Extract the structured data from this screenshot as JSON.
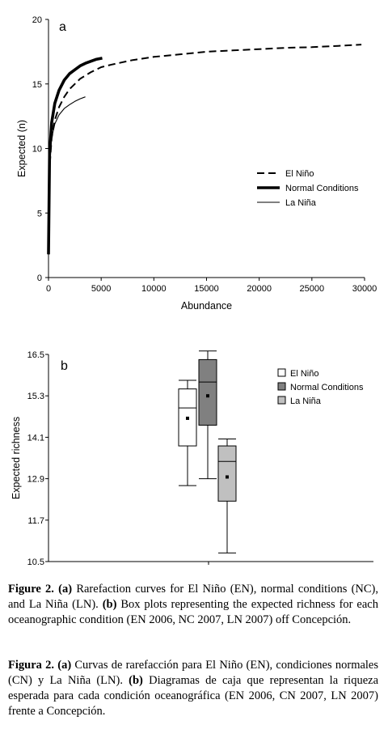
{
  "chart_data": [
    {
      "type": "line",
      "panel_label": "a",
      "xlabel": "Abundance",
      "ylabel": "Expected (n)",
      "xlim": [
        0,
        30000
      ],
      "ylim": [
        0,
        20
      ],
      "xticks": [
        0,
        5000,
        10000,
        15000,
        20000,
        25000,
        30000
      ],
      "yticks": [
        0,
        5,
        10,
        15,
        20
      ],
      "legend_position": "right-middle",
      "series": [
        {
          "name": "El Niño",
          "style": "dashed",
          "color": "#000000",
          "x": [
            0,
            100,
            300,
            600,
            1000,
            1500,
            2000,
            3000,
            4000,
            5000,
            6000,
            8000,
            10000,
            12500,
            15000,
            17500,
            20000,
            22500,
            25000,
            27500,
            29700
          ],
          "y": [
            1.8,
            8.5,
            10.8,
            12.2,
            13.2,
            14.0,
            14.6,
            15.4,
            15.9,
            16.3,
            16.5,
            16.85,
            17.1,
            17.3,
            17.5,
            17.6,
            17.7,
            17.8,
            17.85,
            17.95,
            18.05
          ]
        },
        {
          "name": "Normal Conditions",
          "style": "thick",
          "color": "#000000",
          "x": [
            0,
            100,
            300,
            600,
            1000,
            1500,
            2000,
            2500,
            3000,
            3500,
            4000,
            4500,
            5100
          ],
          "y": [
            1.8,
            9.5,
            12.0,
            13.5,
            14.5,
            15.3,
            15.8,
            16.1,
            16.4,
            16.6,
            16.75,
            16.9,
            17.0
          ]
        },
        {
          "name": "La Niña",
          "style": "thin",
          "color": "#000000",
          "x": [
            0,
            100,
            300,
            600,
            1000,
            1500,
            2000,
            2500,
            3000,
            3500
          ],
          "y": [
            1.8,
            9.0,
            10.8,
            11.9,
            12.6,
            13.1,
            13.4,
            13.65,
            13.85,
            14.0
          ]
        }
      ]
    },
    {
      "type": "box",
      "panel_label": "b",
      "xlabel": "",
      "ylabel": "Expected richness",
      "ylim": [
        10.5,
        16.5
      ],
      "yticks": [
        "10.5",
        "11.7",
        "12.9",
        "14.1",
        "15.3",
        "16.5"
      ],
      "legend_position": "top-right",
      "series": [
        {
          "name": "El Niño",
          "color": "#ffffff",
          "min": 12.7,
          "q1": 13.85,
          "median": 14.95,
          "q3": 15.5,
          "max": 15.75,
          "mean": 14.65
        },
        {
          "name": "Normal Conditions",
          "color": "#808080",
          "min": 12.9,
          "q1": 14.45,
          "median": 15.7,
          "q3": 16.35,
          "max": 16.6,
          "mean": 15.3
        },
        {
          "name": "La Niña",
          "color": "#c0c0c0",
          "min": 10.75,
          "q1": 12.25,
          "median": 13.4,
          "q3": 13.85,
          "max": 14.05,
          "mean": 12.95
        }
      ]
    }
  ],
  "captions": {
    "en": {
      "lead": "Figure 2.",
      "segments": [
        {
          "b": "(a)",
          "t": " Rarefaction curves for El Niño (EN), normal conditions (NC), and La Niña (LN). "
        },
        {
          "b": "(b)",
          "t": " Box plots representing the expected richness for each oceanographic condition (EN 2006, NC 2007, LN 2007) off Concepción."
        }
      ]
    },
    "es": {
      "lead": "Figura 2.",
      "segments": [
        {
          "b": "(a)",
          "t": " Curvas de rarefacción para El Niño (EN), condiciones normales (CN) y La Niña (LN). "
        },
        {
          "b": "(b)",
          "t": " Diagramas de caja que representan la riqueza esperada para cada condición oceanográfica (EN 2006, CN 2007, LN 2007) frente a Concepción."
        }
      ]
    }
  }
}
